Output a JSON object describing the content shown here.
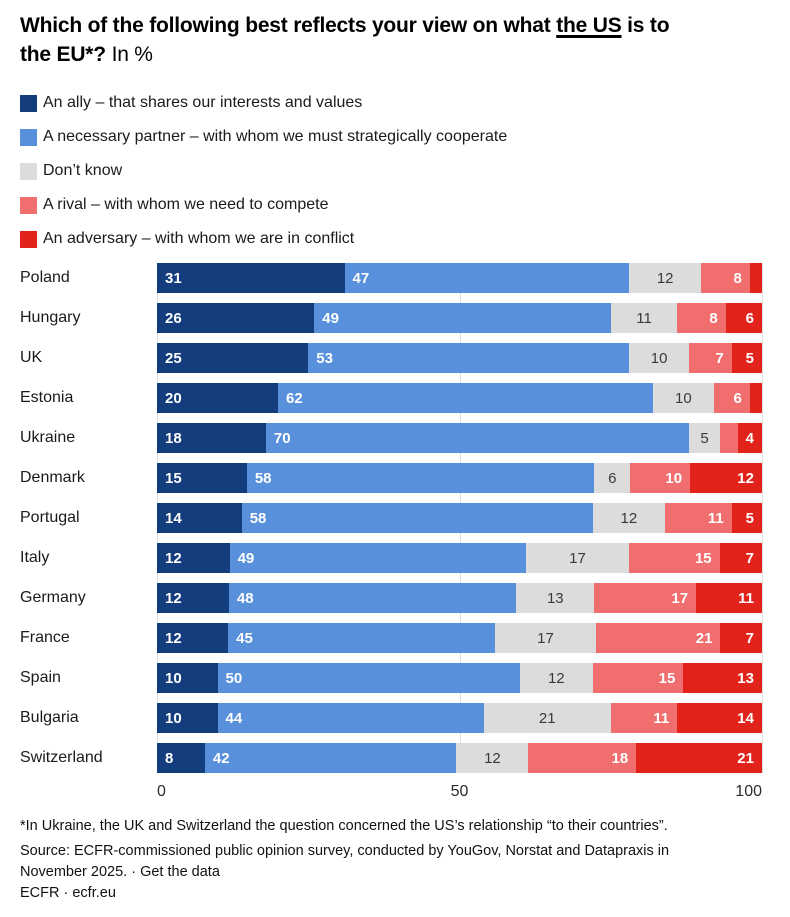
{
  "title": {
    "line1_before_us": "Which of the following best reflects your view on what ",
    "line1_underlined": "the US",
    "line1_after_us": " is to",
    "line2_question": "the EU*?",
    "line2_unit": "In %"
  },
  "legend": {
    "items": [
      {
        "label": "An ally – that shares our interests and values",
        "color": "#133D7D"
      },
      {
        "label": "A necessary partner – with whom we must strategically cooperate",
        "color": "#5890DB"
      },
      {
        "label": "Don’t know",
        "color": "#DCDCDC"
      },
      {
        "label": "A rival – with whom we need to compete",
        "color": "#F06E6E"
      },
      {
        "label": "An adversary – with whom we are in conflict",
        "color": "#E2231B"
      }
    ]
  },
  "chart_data": {
    "type": "bar",
    "stacked": true,
    "orientation": "horizontal",
    "title": "Which of the following best reflects your view on what the US is to the EU*?",
    "unit": "%",
    "legend_position": "top",
    "xlim": [
      0,
      100
    ],
    "x_ticks": [
      0,
      50,
      100
    ],
    "label_min": 4,
    "categories": [
      "Poland",
      "Hungary",
      "UK",
      "Estonia",
      "Ukraine",
      "Denmark",
      "Portugal",
      "Italy",
      "Germany",
      "France",
      "Spain",
      "Bulgaria",
      "Switzerland"
    ],
    "series": [
      {
        "name": "An ally – that shares our interests and values",
        "color": "#133D7D",
        "label_color": "#ffffff",
        "label_bold": true,
        "values": [
          31,
          26,
          25,
          20,
          18,
          15,
          14,
          12,
          12,
          12,
          10,
          10,
          8
        ]
      },
      {
        "name": "A necessary partner – with whom we must strategically cooperate",
        "color": "#5890DB",
        "label_color": "#ffffff",
        "label_bold": true,
        "values": [
          47,
          49,
          53,
          62,
          70,
          58,
          58,
          49,
          48,
          45,
          50,
          44,
          42
        ]
      },
      {
        "name": "Don’t know",
        "color": "#DCDCDC",
        "label_color": "#3a3a3a",
        "label_bold": false,
        "values": [
          12,
          11,
          10,
          10,
          5,
          6,
          12,
          17,
          13,
          17,
          12,
          21,
          12
        ]
      },
      {
        "name": "A rival – with whom we need to compete",
        "color": "#F06E6E",
        "label_color": "#ffffff",
        "label_bold": true,
        "values": [
          8,
          8,
          7,
          6,
          3,
          10,
          11,
          15,
          17,
          21,
          15,
          11,
          18
        ]
      },
      {
        "name": "An adversary – with whom we are in conflict",
        "color": "#E2231B",
        "label_color": "#ffffff",
        "label_bold": true,
        "values": [
          2,
          6,
          5,
          2,
          4,
          12,
          5,
          7,
          11,
          7,
          13,
          14,
          21
        ]
      }
    ]
  },
  "footer": {
    "footnote": "*In Ukraine, the UK and Switzerland the question concerned the US’s relationship “to their countries”.",
    "source_line1": "Source: ECFR-commissioned public opinion survey, conducted by YouGov, Norstat and Datapraxis in",
    "source_line2_prefix": "November 2025. · ",
    "get_data_label": "Get the data",
    "credit": "ECFR · ecfr.eu"
  }
}
